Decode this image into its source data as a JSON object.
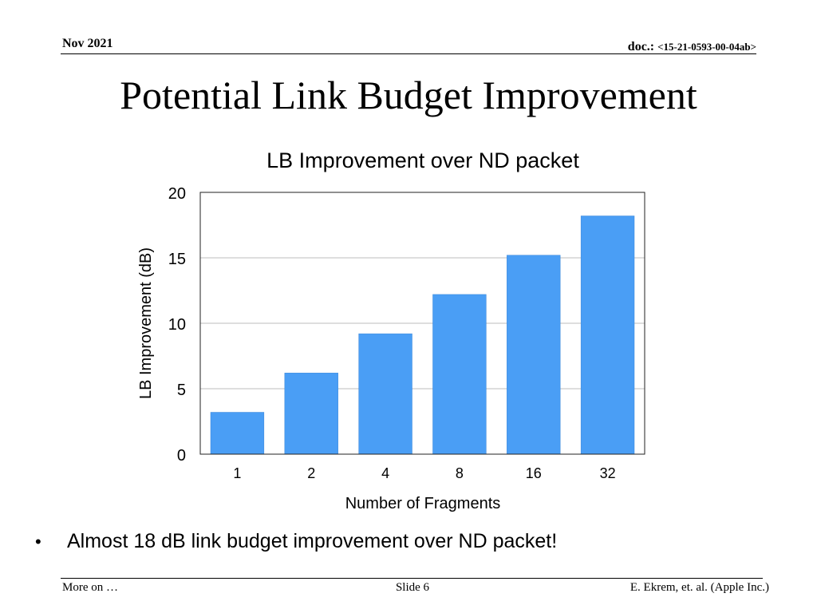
{
  "header": {
    "date": "Nov 2021",
    "doc_prefix": "doc.: ",
    "doc_number": "<15-21-0593-00-04ab>"
  },
  "slide_title": "Potential Link Budget Improvement",
  "chart_data": {
    "type": "bar",
    "title": "LB Improvement over ND packet",
    "xlabel": "Number of Fragments",
    "ylabel": "LB Improvement (dB)",
    "categories": [
      "1",
      "2",
      "4",
      "8",
      "16",
      "32"
    ],
    "values": [
      3.2,
      6.2,
      9.2,
      12.2,
      15.2,
      18.2
    ],
    "ylim": [
      0,
      20
    ],
    "yticks": [
      0,
      5,
      10,
      15,
      20
    ],
    "grid": true,
    "bar_color": "#4A9EF5"
  },
  "bullet_text": "Almost 18 dB link budget improvement over ND packet!",
  "footer": {
    "left": "More on …",
    "center": "Slide 6",
    "right": "E. Ekrem, et. al. (Apple Inc.)"
  }
}
